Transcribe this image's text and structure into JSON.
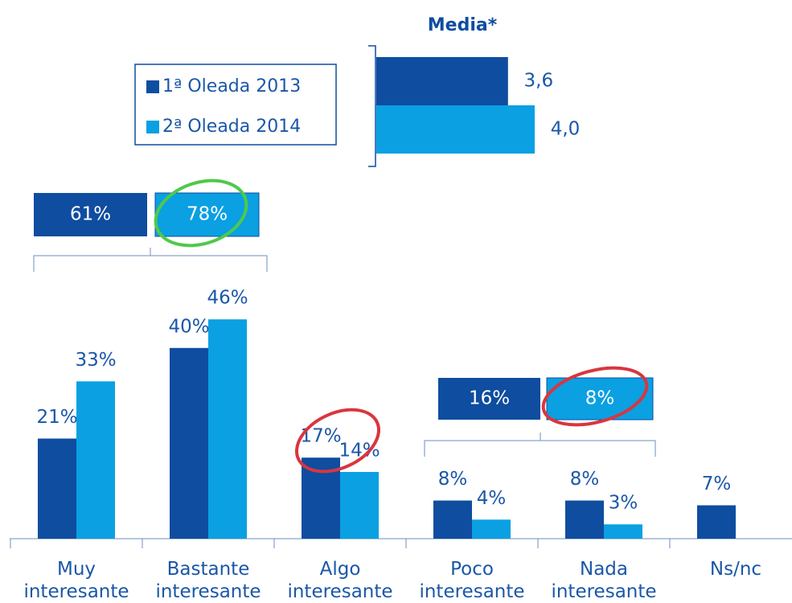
{
  "chart_data": [
    {
      "type": "grouped-bar",
      "categories": [
        "Muy interesante",
        "Bastante interesante",
        "Algo interesante",
        "Poco interesante",
        "Nada interesante",
        "Ns/nc"
      ],
      "series": [
        {
          "name": "1ª Oleada 2013",
          "color": "#0e4da0",
          "values": [
            21,
            40,
            17,
            8,
            8,
            7
          ],
          "value_labels": [
            "21%",
            "40%",
            "17%",
            "8%",
            "8%",
            "7%"
          ]
        },
        {
          "name": "2ª Oleada 2014",
          "color": "#0aa0e2",
          "values": [
            33,
            46,
            14,
            4,
            3,
            null
          ],
          "value_labels": [
            "33%",
            "46%",
            "14%",
            "4%",
            "3%",
            null
          ]
        }
      ],
      "totals": [
        {
          "values": [
            61,
            78
          ],
          "value_labels": [
            "61%",
            "78%"
          ]
        },
        {
          "values": [
            16,
            8
          ],
          "value_labels": [
            "16%",
            "8%"
          ]
        }
      ]
    },
    {
      "type": "hbar",
      "title": "Media*",
      "values": [
        3.6,
        4.0
      ],
      "value_labels": [
        "3,6",
        "4,0"
      ],
      "colors": [
        "#0e4da0",
        "#0aa0e2"
      ]
    }
  ]
}
